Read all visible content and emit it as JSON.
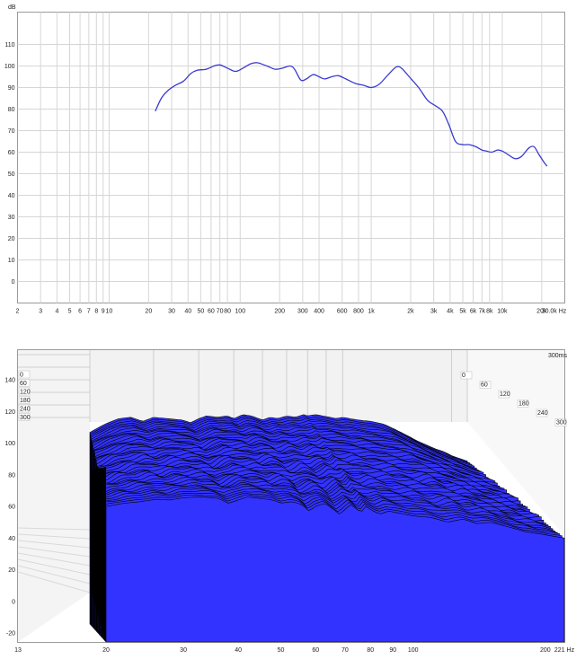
{
  "chart_data": [
    {
      "type": "line",
      "y_unit": "dB",
      "x_unit": "Hz",
      "xscale": "log",
      "xlim": [
        2,
        30000
      ],
      "ylim": [
        -10,
        120
      ],
      "grid": true,
      "x_tick_labels": [
        {
          "v": 2,
          "t": "2"
        },
        {
          "v": 3,
          "t": "3"
        },
        {
          "v": 4,
          "t": "4"
        },
        {
          "v": 5,
          "t": "5"
        },
        {
          "v": 6,
          "t": "6"
        },
        {
          "v": 7,
          "t": "7"
        },
        {
          "v": 8,
          "t": "8"
        },
        {
          "v": 9,
          "t": "9"
        },
        {
          "v": 10,
          "t": "10"
        },
        {
          "v": 20,
          "t": "20"
        },
        {
          "v": 30,
          "t": "30"
        },
        {
          "v": 40,
          "t": "40"
        },
        {
          "v": 50,
          "t": "50"
        },
        {
          "v": 60,
          "t": "60"
        },
        {
          "v": 70,
          "t": "70"
        },
        {
          "v": 80,
          "t": "80"
        },
        {
          "v": 100,
          "t": "100"
        },
        {
          "v": 200,
          "t": "200"
        },
        {
          "v": 300,
          "t": "300"
        },
        {
          "v": 400,
          "t": "400"
        },
        {
          "v": 600,
          "t": "600"
        },
        {
          "v": 800,
          "t": "800"
        },
        {
          "v": 1000,
          "t": "1k"
        },
        {
          "v": 2000,
          "t": "2k"
        },
        {
          "v": 3000,
          "t": "3k"
        },
        {
          "v": 4000,
          "t": "4k"
        },
        {
          "v": 5000,
          "t": "5k"
        },
        {
          "v": 6000,
          "t": "6k"
        },
        {
          "v": 7000,
          "t": "7k"
        },
        {
          "v": 8000,
          "t": "8k"
        },
        {
          "v": 10000,
          "t": "10k"
        },
        {
          "v": 20000,
          "t": "20k"
        },
        {
          "v": 30000,
          "t": "30.0k Hz"
        }
      ],
      "y_ticks": [
        0,
        10,
        20,
        30,
        40,
        50,
        60,
        70,
        80,
        90,
        100,
        110
      ],
      "series": [
        {
          "color": "#3a3ad0",
          "points": [
            [
              22.5,
              79
            ],
            [
              25,
              85
            ],
            [
              28,
              88.5
            ],
            [
              32,
              91
            ],
            [
              37,
              93
            ],
            [
              42,
              96.5
            ],
            [
              47,
              98
            ],
            [
              55,
              98.5
            ],
            [
              63,
              100
            ],
            [
              70,
              100.5
            ],
            [
              80,
              99
            ],
            [
              92,
              97.5
            ],
            [
              105,
              99
            ],
            [
              120,
              101
            ],
            [
              135,
              101.5
            ],
            [
              160,
              100
            ],
            [
              185,
              98.5
            ],
            [
              210,
              99
            ],
            [
              240,
              100
            ],
            [
              260,
              98.5
            ],
            [
              290,
              93.5
            ],
            [
              320,
              94
            ],
            [
              360,
              96
            ],
            [
              400,
              95
            ],
            [
              440,
              94
            ],
            [
              500,
              95
            ],
            [
              560,
              95.5
            ],
            [
              640,
              94
            ],
            [
              750,
              92
            ],
            [
              880,
              91
            ],
            [
              1000,
              90
            ],
            [
              1150,
              91.5
            ],
            [
              1350,
              96
            ],
            [
              1550,
              99.5
            ],
            [
              1700,
              99
            ],
            [
              1950,
              95
            ],
            [
              2300,
              90
            ],
            [
              2700,
              84
            ],
            [
              3100,
              81.5
            ],
            [
              3500,
              79
            ],
            [
              3900,
              73
            ],
            [
              4400,
              65
            ],
            [
              5000,
              63.5
            ],
            [
              5600,
              63.5
            ],
            [
              6300,
              62.5
            ],
            [
              7000,
              61
            ],
            [
              7600,
              60.5
            ],
            [
              8300,
              60
            ],
            [
              9200,
              61
            ],
            [
              10000,
              60.5
            ],
            [
              11000,
              59
            ],
            [
              12500,
              57
            ],
            [
              14000,
              58
            ],
            [
              16000,
              62
            ],
            [
              17500,
              62.5
            ],
            [
              19000,
              59
            ],
            [
              21000,
              55
            ],
            [
              22000,
              53.5
            ]
          ]
        }
      ]
    },
    {
      "type": "waterfall",
      "x_unit": "Hz",
      "xscale": "log",
      "xlim": [
        13,
        221
      ],
      "ylim": [
        -20,
        140
      ],
      "x_tick_labels": [
        {
          "v": 13,
          "t": "13"
        },
        {
          "v": 20,
          "t": "20"
        },
        {
          "v": 30,
          "t": "30"
        },
        {
          "v": 40,
          "t": "40"
        },
        {
          "v": 50,
          "t": "50"
        },
        {
          "v": 60,
          "t": "60"
        },
        {
          "v": 70,
          "t": "70"
        },
        {
          "v": 80,
          "t": "80"
        },
        {
          "v": 90,
          "t": "90"
        },
        {
          "v": 100,
          "t": "100"
        },
        {
          "v": 200,
          "t": "200"
        },
        {
          "v": 221,
          "t": "221 Hz"
        }
      ],
      "y_ticks": [
        -20,
        0,
        20,
        40,
        60,
        80,
        100,
        120,
        140
      ],
      "time_labels": [
        "0",
        "60",
        "120",
        "180",
        "240",
        "300"
      ],
      "time_unit_label": "300ms",
      "fill_color": "#3333ff",
      "edge_color": "#000000",
      "front_slice": [
        [
          20,
          60
        ],
        [
          22,
          62
        ],
        [
          24,
          63
        ],
        [
          26,
          64.5
        ],
        [
          28,
          64
        ],
        [
          30,
          65.5
        ],
        [
          33,
          66
        ],
        [
          36,
          65
        ],
        [
          38,
          62
        ],
        [
          40,
          64
        ],
        [
          42,
          66
        ],
        [
          45,
          65
        ],
        [
          48,
          64
        ],
        [
          50,
          62
        ],
        [
          53,
          63
        ],
        [
          56,
          61
        ],
        [
          58,
          57
        ],
        [
          60,
          60
        ],
        [
          63,
          62
        ],
        [
          66,
          58
        ],
        [
          68,
          55
        ],
        [
          70,
          58
        ],
        [
          72,
          61
        ],
        [
          74,
          59
        ],
        [
          76,
          56
        ],
        [
          78,
          60
        ],
        [
          80,
          58
        ],
        [
          84,
          55
        ],
        [
          88,
          57
        ],
        [
          92,
          56
        ],
        [
          96,
          55
        ],
        [
          100,
          54
        ],
        [
          110,
          53
        ],
        [
          120,
          50
        ],
        [
          130,
          52
        ],
        [
          140,
          49
        ],
        [
          150,
          50
        ],
        [
          160,
          48
        ],
        [
          170,
          46
        ],
        [
          180,
          44
        ],
        [
          190,
          43
        ],
        [
          200,
          42
        ],
        [
          210,
          41
        ],
        [
          221,
          40
        ]
      ],
      "back_slice": [
        [
          20,
          84
        ],
        [
          22,
          90
        ],
        [
          24,
          94
        ],
        [
          26,
          95
        ],
        [
          28,
          92
        ],
        [
          30,
          95
        ],
        [
          33,
          94
        ],
        [
          36,
          93
        ],
        [
          38,
          91
        ],
        [
          40,
          94
        ],
        [
          42,
          96
        ],
        [
          45,
          95
        ],
        [
          48,
          96
        ],
        [
          50,
          94
        ],
        [
          53,
          97
        ],
        [
          56,
          96
        ],
        [
          60,
          93
        ],
        [
          63,
          95
        ],
        [
          66,
          94
        ],
        [
          70,
          96
        ],
        [
          74,
          95
        ],
        [
          78,
          97
        ],
        [
          80,
          96
        ],
        [
          84,
          97
        ],
        [
          88,
          96
        ],
        [
          92,
          95
        ],
        [
          96,
          94
        ],
        [
          100,
          95
        ],
        [
          110,
          93
        ],
        [
          120,
          92
        ],
        [
          130,
          90
        ],
        [
          140,
          86
        ],
        [
          150,
          82
        ],
        [
          160,
          78
        ],
        [
          170,
          75
        ],
        [
          180,
          72
        ],
        [
          190,
          70
        ],
        [
          200,
          67
        ],
        [
          210,
          65
        ],
        [
          221,
          63
        ]
      ]
    }
  ]
}
